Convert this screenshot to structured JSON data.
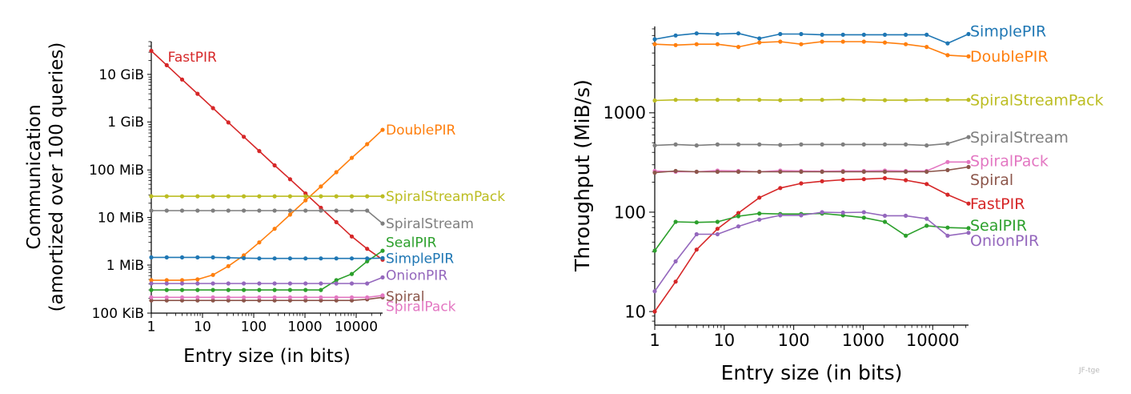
{
  "watermark": "JF-tge",
  "chart_data": [
    {
      "type": "line",
      "id": "communication",
      "xlabel": "Entry size (in bits)",
      "ylabel": "Communication",
      "ylabel2": "(amortized over 100 queries)",
      "xscale": "log",
      "yscale": "log",
      "x_ticks": [
        {
          "v": 1,
          "label": "1"
        },
        {
          "v": 10,
          "label": "10"
        },
        {
          "v": 100,
          "label": "100"
        },
        {
          "v": 1000,
          "label": "1000"
        },
        {
          "v": 10000,
          "label": "10000"
        }
      ],
      "y_ticks": [
        {
          "v": 0.0977,
          "label": "100 KiB"
        },
        {
          "v": 1,
          "label": "1 MiB"
        },
        {
          "v": 10,
          "label": "10 MiB"
        },
        {
          "v": 100,
          "label": "100 MiB"
        },
        {
          "v": 1024,
          "label": "1 GiB"
        },
        {
          "v": 10240,
          "label": "10 GiB"
        }
      ],
      "xlim": [
        1,
        32768
      ],
      "ylim": [
        0.0977,
        50000
      ],
      "x": [
        1,
        2,
        4,
        8,
        16,
        32,
        64,
        128,
        256,
        512,
        1024,
        2048,
        4096,
        8192,
        16384,
        32768
      ],
      "series": [
        {
          "name": "FastPIR",
          "color": "#d62728",
          "values": [
            32000,
            16000,
            8000,
            4000,
            2000,
            1000,
            500,
            250,
            125,
            64,
            32,
            16,
            8,
            4,
            2.2,
            1.3
          ],
          "label_y": 24000,
          "label_pos": "top-left"
        },
        {
          "name": "DoublePIR",
          "color": "#ff7f0e",
          "values": [
            0.48,
            0.48,
            0.48,
            0.5,
            0.62,
            0.95,
            1.6,
            3,
            5.8,
            11.5,
            23,
            45,
            90,
            180,
            350,
            700
          ],
          "label_y": 700
        },
        {
          "name": "SpiralStreamPack",
          "color": "#bcbd22",
          "values": [
            28,
            28,
            28,
            28,
            28,
            28,
            28,
            28,
            28,
            28,
            28,
            28,
            28,
            28,
            28,
            28
          ],
          "label_y": 28
        },
        {
          "name": "SpiralStream",
          "color": "#7f7f7f",
          "values": [
            14,
            14,
            14,
            14,
            14,
            14,
            14,
            14,
            14,
            14,
            14,
            14,
            14,
            14,
            14,
            7.5
          ],
          "label_y": 7.5
        },
        {
          "name": "SealPIR",
          "color": "#2ca02c",
          "values": [
            0.3,
            0.3,
            0.3,
            0.3,
            0.3,
            0.3,
            0.3,
            0.3,
            0.3,
            0.3,
            0.3,
            0.3,
            0.48,
            0.65,
            1.2,
            2.0
          ],
          "label_y": 3.0
        },
        {
          "name": "SimplePIR",
          "color": "#1f77b4",
          "values": [
            1.45,
            1.45,
            1.45,
            1.45,
            1.45,
            1.43,
            1.4,
            1.38,
            1.38,
            1.38,
            1.38,
            1.38,
            1.38,
            1.38,
            1.38,
            1.4
          ],
          "label_y": 1.4
        },
        {
          "name": "OnionPIR",
          "color": "#9467bd",
          "values": [
            0.41,
            0.41,
            0.41,
            0.41,
            0.41,
            0.41,
            0.41,
            0.41,
            0.41,
            0.41,
            0.41,
            0.41,
            0.41,
            0.41,
            0.41,
            0.55
          ],
          "label_y": 0.62
        },
        {
          "name": "Spiral",
          "color": "#8c564b",
          "values": [
            0.18,
            0.18,
            0.18,
            0.18,
            0.18,
            0.18,
            0.18,
            0.18,
            0.18,
            0.18,
            0.18,
            0.18,
            0.18,
            0.18,
            0.19,
            0.21
          ],
          "label_y": 0.22
        },
        {
          "name": "SpiralPack",
          "color": "#e377c2",
          "values": [
            0.21,
            0.21,
            0.21,
            0.21,
            0.21,
            0.21,
            0.21,
            0.21,
            0.21,
            0.21,
            0.21,
            0.21,
            0.21,
            0.21,
            0.21,
            0.23
          ],
          "label_y": 0.135
        }
      ]
    },
    {
      "type": "line",
      "id": "throughput",
      "xlabel": "Entry size (in bits)",
      "ylabel": "Throughput (MiB/s)",
      "xscale": "log",
      "yscale": "log",
      "x_ticks": [
        {
          "v": 1,
          "label": "1"
        },
        {
          "v": 10,
          "label": "10"
        },
        {
          "v": 100,
          "label": "100"
        },
        {
          "v": 1000,
          "label": "1000"
        },
        {
          "v": 10000,
          "label": "10000"
        }
      ],
      "y_ticks": [
        {
          "v": 10,
          "label": "10"
        },
        {
          "v": 100,
          "label": "100"
        },
        {
          "v": 1000,
          "label": "1000"
        }
      ],
      "xlim": [
        1,
        32768
      ],
      "ylim": [
        7.3,
        7400
      ],
      "x": [
        1,
        2,
        4,
        8,
        16,
        32,
        64,
        128,
        256,
        512,
        1024,
        2048,
        4096,
        8192,
        16384,
        32768
      ],
      "series": [
        {
          "name": "SimplePIR",
          "color": "#1f77b4",
          "values": [
            5500,
            6000,
            6300,
            6200,
            6300,
            5600,
            6200,
            6200,
            6100,
            6100,
            6100,
            6100,
            6100,
            6100,
            5000,
            6200
          ],
          "label_y": 6650
        },
        {
          "name": "DoublePIR",
          "color": "#ff7f0e",
          "values": [
            4900,
            4800,
            4900,
            4900,
            4600,
            5100,
            5200,
            4900,
            5200,
            5200,
            5200,
            5100,
            4900,
            4600,
            3800,
            3700
          ],
          "label_y": 3700
        },
        {
          "name": "SpiralStreamPack",
          "color": "#bcbd22",
          "values": [
            1330,
            1350,
            1350,
            1350,
            1350,
            1350,
            1340,
            1350,
            1350,
            1360,
            1350,
            1340,
            1340,
            1350,
            1350,
            1350
          ],
          "label_y": 1350
        },
        {
          "name": "SpiralStream",
          "color": "#7f7f7f",
          "values": [
            470,
            480,
            470,
            480,
            480,
            480,
            475,
            480,
            480,
            480,
            480,
            480,
            480,
            470,
            490,
            570
          ],
          "label_y": 570
        },
        {
          "name": "SpiralPack",
          "color": "#e377c2",
          "values": [
            260,
            255,
            255,
            262,
            260,
            255,
            262,
            260,
            258,
            260,
            260,
            262,
            260,
            260,
            320,
            320
          ],
          "label_y": 330
        },
        {
          "name": "Spiral",
          "color": "#8c564b",
          "values": [
            250,
            260,
            255,
            255,
            255,
            255,
            255,
            255,
            255,
            255,
            255,
            255,
            255,
            255,
            265,
            285
          ],
          "label_y": 213
        },
        {
          "name": "FastPIR",
          "color": "#d62728",
          "values": [
            10,
            20,
            42,
            68,
            98,
            140,
            175,
            195,
            205,
            212,
            215,
            220,
            210,
            192,
            150,
            122
          ],
          "label_y": 122
        },
        {
          "name": "SealPIR",
          "color": "#2ca02c",
          "values": [
            41,
            80,
            79,
            80,
            91,
            97,
            96,
            96,
            97,
            93,
            88,
            80,
            58,
            73,
            70,
            69
          ],
          "label_y": 74
        },
        {
          "name": "OnionPIR",
          "color": "#9467bd",
          "values": [
            16,
            32,
            60,
            60,
            72,
            84,
            93,
            93,
            100,
            99,
            100,
            92,
            92,
            86,
            58,
            62
          ],
          "label_y": 52
        }
      ]
    }
  ]
}
